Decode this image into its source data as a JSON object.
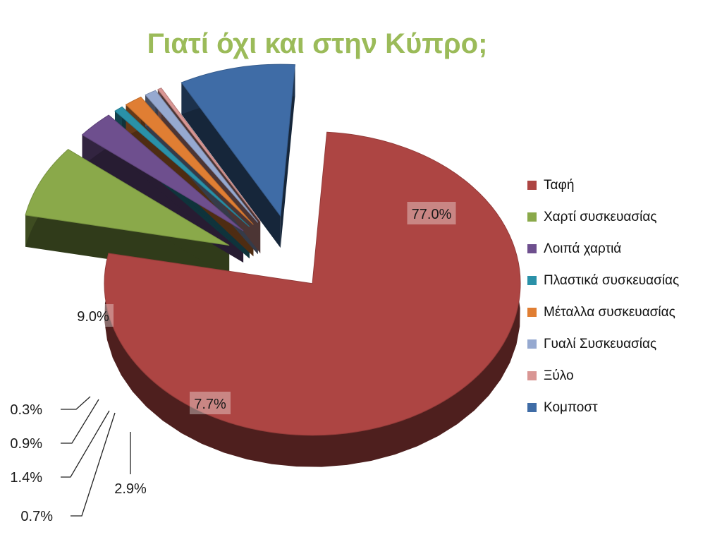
{
  "page": {
    "title": "Γιατί όχι και στην Κύπρο;"
  },
  "chart_data": {
    "type": "pie",
    "title": "",
    "exploded": true,
    "three_d": true,
    "legend_position": "right",
    "series": [
      {
        "labels": [
          "Ταφή",
          "Χαρτί συσκευασίας",
          "Λοιπά χαρτιά",
          "Πλαστικά συσκευασίας",
          "Μέταλλα συσκευασίας",
          "Γυαλί Συσκευασίας",
          "Ξύλο",
          "Κομποστ"
        ],
        "values": [
          77.0,
          7.7,
          2.9,
          0.7,
          1.4,
          0.9,
          0.3,
          9.0
        ],
        "data_labels": [
          "77.0%",
          "7.7%",
          "2.9%",
          "0.7%",
          "1.4%",
          "0.9%",
          "0.3%",
          "9.0%"
        ],
        "colors": [
          "#ad4543",
          "#8aa94a",
          "#6e4f8e",
          "#2a91a8",
          "#e07e33",
          "#96a9d0",
          "#d99694",
          "#3f6ca6"
        ]
      }
    ]
  }
}
